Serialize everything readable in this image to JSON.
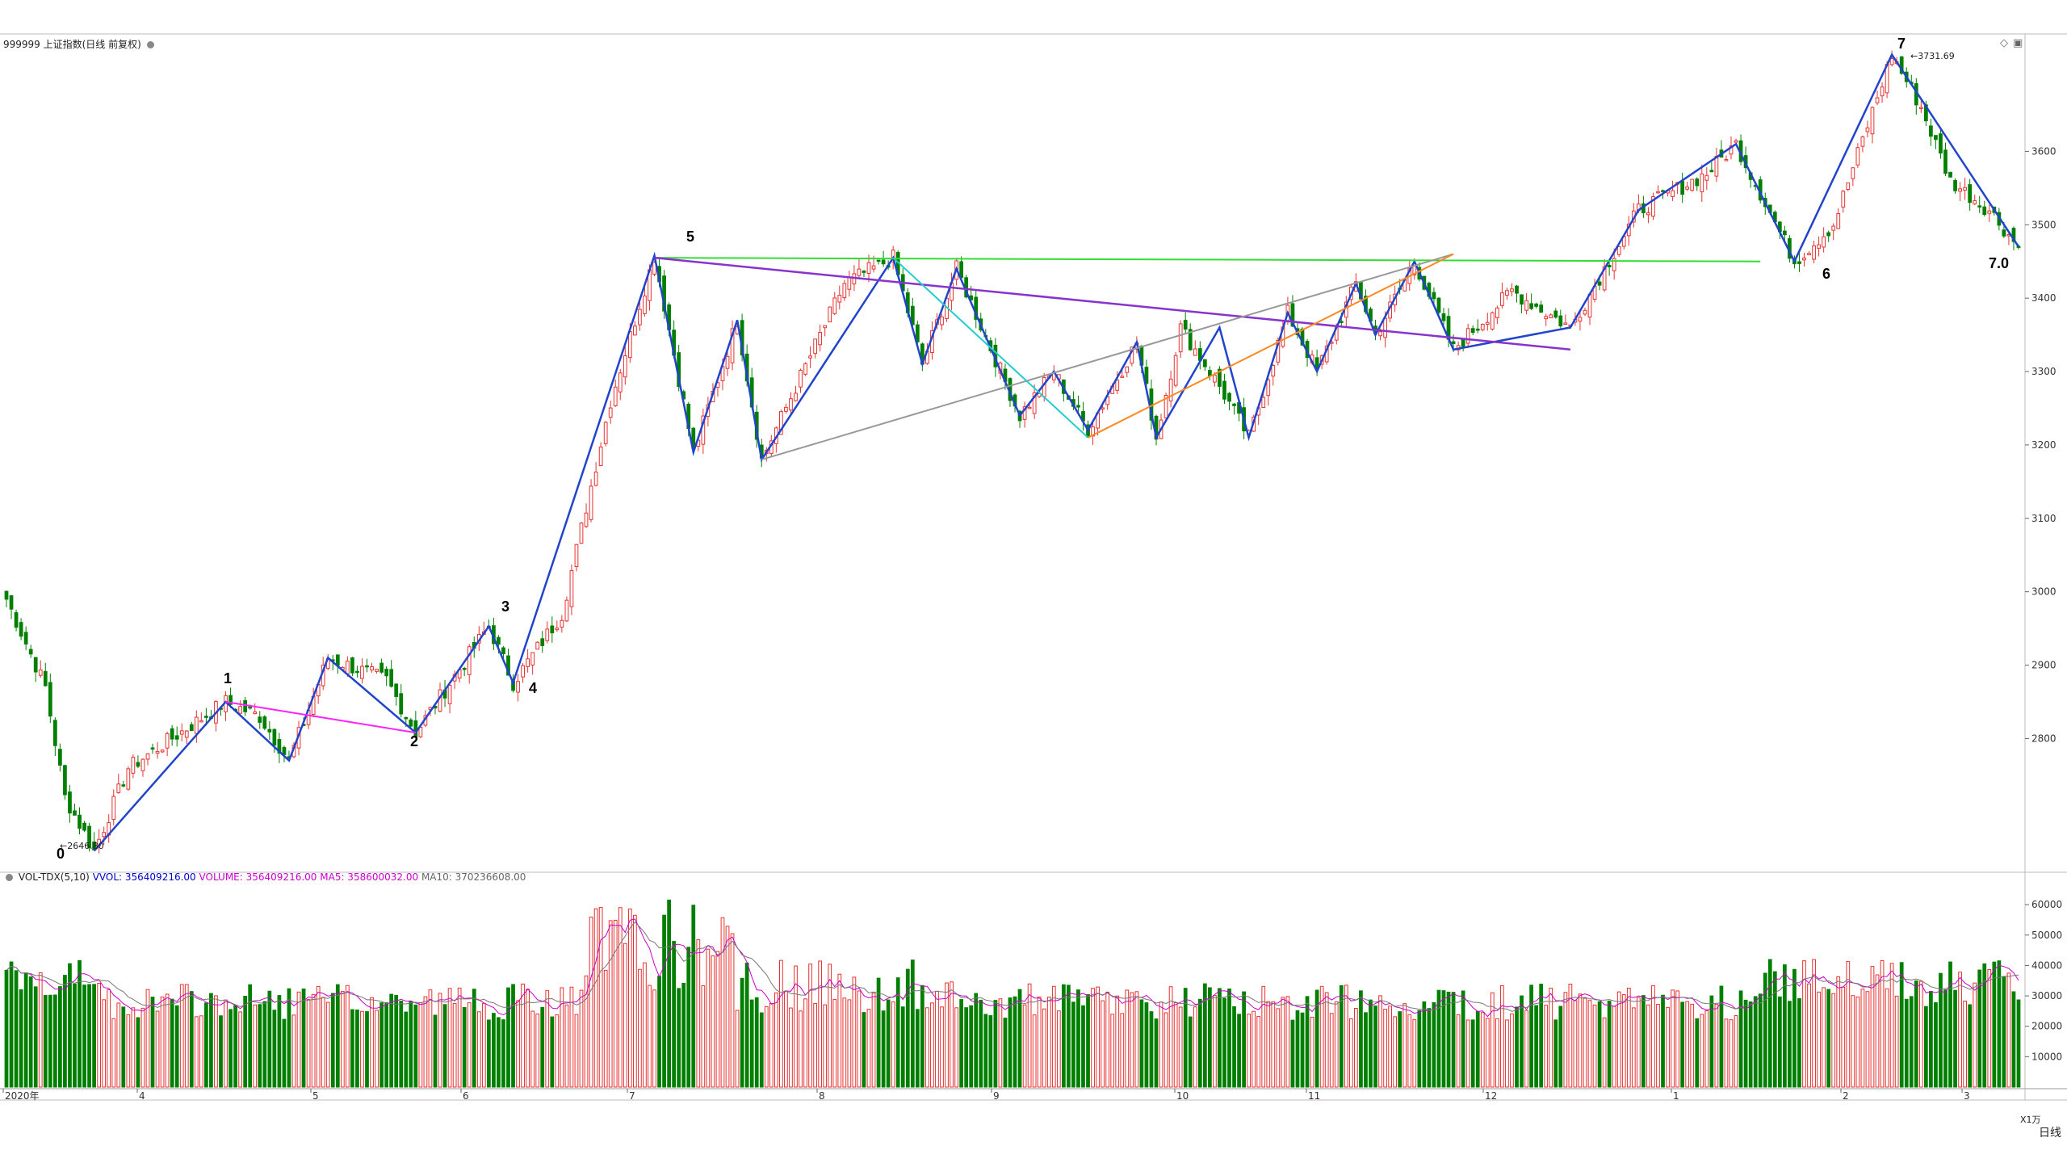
{
  "header": {
    "instrument": "999999 上证指数(日线 前复权)",
    "settings_icon": "gear-icon"
  },
  "volume_header": {
    "indicator": "VOL-TDX(5,10)",
    "vvol": "VVOL: 356409216.00",
    "volume": "VOLUME: 356409216.00",
    "ma5": "MA5: 358600032.00",
    "ma10": "MA10: 370236608.00",
    "colors": {
      "vvol": "#0000cc",
      "volume": "#cc00cc",
      "ma5": "#cc00cc",
      "ma10": "#666666"
    }
  },
  "footer": {
    "unit_label": "X1万",
    "period_label": "日线"
  },
  "annotations": {
    "low_label": "2646.80",
    "high_label": "3731.69",
    "waves": [
      "0",
      "1",
      "2",
      "3",
      "4",
      "5",
      "6",
      "7",
      "7.0"
    ]
  },
  "icons": {
    "top_right": [
      "diamond-icon",
      "window-icon"
    ]
  },
  "chart_data": [
    {
      "type": "candlestick",
      "title": "999999 上证指数(日线 前复权)",
      "y_ticks": [
        2800,
        2900,
        3000,
        3100,
        3200,
        3300,
        3400,
        3500,
        3600
      ],
      "ylim": [
        2620,
        3760
      ],
      "x_ticks": [
        "2020年",
        "4",
        "5",
        "6",
        "7",
        "8",
        "9",
        "10",
        "11",
        "12",
        "1",
        "2",
        "3"
      ],
      "low_marker": 2646.8,
      "high_marker": 3731.69,
      "colors": {
        "up": "#e63232",
        "down": "#007f00"
      },
      "waves": [
        {
          "label": "0",
          "date": "2020-03",
          "value": 2646.8
        },
        {
          "label": "1",
          "date": "2020-04",
          "value": 2850
        },
        {
          "label": "2",
          "date": "2020-05",
          "value": 2808
        },
        {
          "label": "3",
          "date": "2020-06",
          "value": 2953
        },
        {
          "label": "4",
          "date": "2020-06",
          "value": 2876
        },
        {
          "label": "5",
          "date": "2020-07",
          "value": 3458
        },
        {
          "label": "6",
          "date": "2021-01",
          "value": 3450
        },
        {
          "label": "7",
          "date": "2021-02",
          "value": 3731.69
        },
        {
          "label": "7.0",
          "date": "2021-03",
          "value": 3470
        }
      ],
      "trendlines": [
        {
          "name": "horizontal",
          "color": "#33dd33"
        },
        {
          "name": "descending",
          "color": "#8833cc"
        },
        {
          "name": "channel",
          "color": "#999999"
        },
        {
          "name": "flag",
          "color": "#ff8822"
        },
        {
          "name": "mini-channel",
          "color": "#ff22ff"
        },
        {
          "name": "cyan-slope",
          "color": "#22cccc"
        }
      ]
    },
    {
      "type": "bar",
      "title": "VOL-TDX(5,10)",
      "y_ticks": [
        10000,
        20000,
        30000,
        40000,
        50000,
        60000
      ],
      "ylim": [
        0,
        68000
      ],
      "unit": "X1万",
      "series": [
        {
          "name": "VOLUME",
          "color": "#cc00cc"
        },
        {
          "name": "MA5",
          "color": "#cc00cc"
        },
        {
          "name": "MA10",
          "color": "#666666"
        }
      ]
    }
  ]
}
